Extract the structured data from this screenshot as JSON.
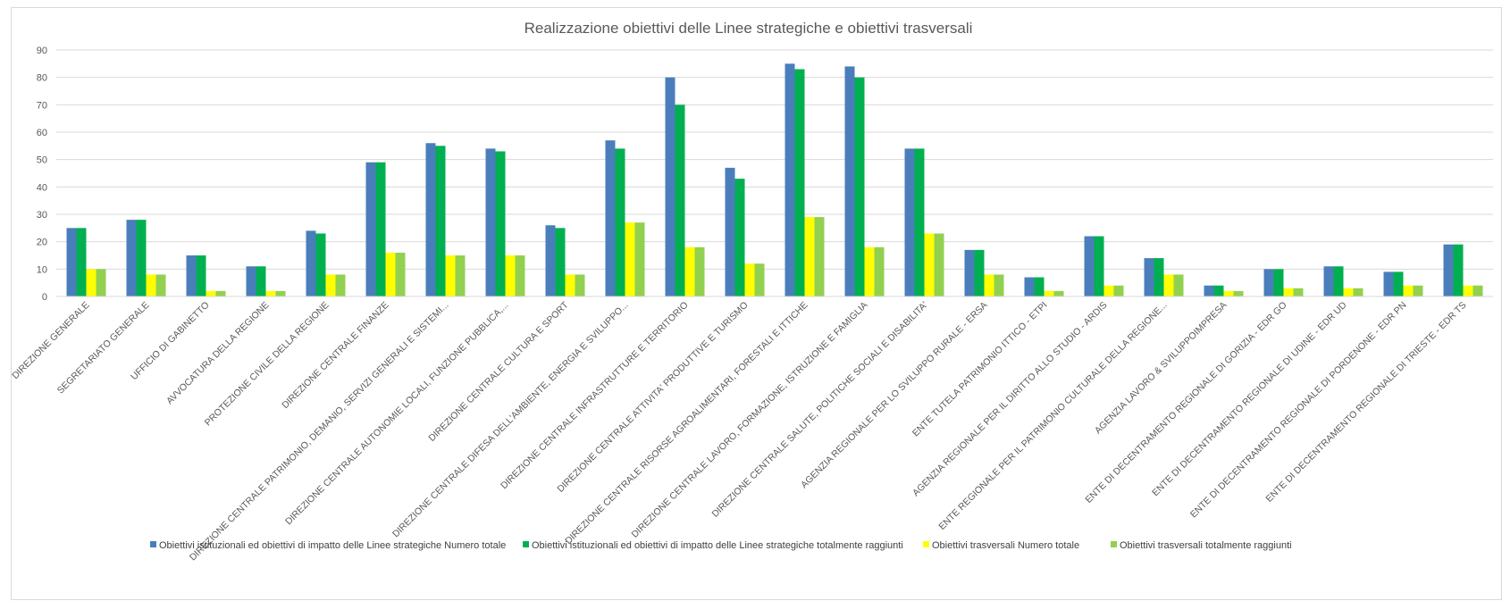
{
  "chart_data": {
    "type": "bar",
    "title": "Realizzazione obiettivi delle Linee strategiche e obiettivi trasversali",
    "xlabel": "",
    "ylabel": "",
    "ylim": [
      0,
      90
    ],
    "yticks": [
      0,
      10,
      20,
      30,
      40,
      50,
      60,
      70,
      80,
      90
    ],
    "grid": true,
    "legend_position": "bottom",
    "categories": [
      "DIREZIONE GENERALE",
      "SEGRETARIATO GENERALE",
      "UFFICIO DI GABINETTO",
      "AVVOCATURA DELLA REGIONE",
      "PROTEZIONE CIVILE DELLA REGIONE",
      "DIREZIONE CENTRALE FINANZE",
      "DIREZIONE CENTRALE PATRIMONIO, DEMANIO, SERVIZI GENERALI E SISTEMI...",
      "DIREZIONE CENTRALE AUTONOMIE LOCALI, FUNZIONE PUBBLICA,...",
      "DIREZIONE CENTRALE CULTURA E SPORT",
      "DIREZIONE CENTRALE DIFESA DELL'AMBIENTE, ENERGIA E SVILUPPO...",
      "DIREZIONE CENTRALE INFRASTRUTTURE E TERRITORIO",
      "DIREZIONE CENTRALE ATTIVITA' PRODUTTIVE E TURISMO",
      "DIREZIONE CENTRALE RISORSE AGROALIMENTARI, FORESTALI E ITTICHE",
      "DIREZIONE CENTRALE LAVORO, FORMAZIONE, ISTRUZIONE E FAMIGLIA",
      "DIREZIONE CENTRALE SALUTE, POLITICHE SOCIALI E DISABILITA'",
      "AGENZIA REGIONALE PER LO SVILUPPO RURALE - ERSA",
      "ENTE TUTELA PATRIMONIO ITTICO - ETPI",
      "AGENZIA REGIONALE PER IL DIRITTO ALLO STUDIO - ARDIS",
      "ENTE REGIONALE PER IL PATRIMONIO CULTURALE DELLA REGIONE...",
      "AGENZIA LAVORO & SVILUPPOIMPRESA",
      "ENTE DI DECENTRAMENTO REGIONALE DI GORIZIA - EDR GO",
      "ENTE DI DECENTRAMENTO REGIONALE DI UDINE - EDR UD",
      "ENTE DI DECENTRAMENTO REGIONALE DI PORDENONE - EDR PN",
      "ENTE DI DECENTRAMENTO REGIONALE DI TRIESTE - EDR TS"
    ],
    "series": [
      {
        "name": "Obiettivi istituzionali ed obiettivi di impatto delle Linee strategiche Numero totale",
        "color": "#4a7ebb",
        "values": [
          25,
          28,
          15,
          11,
          24,
          49,
          56,
          54,
          26,
          57,
          80,
          47,
          85,
          84,
          54,
          17,
          7,
          22,
          14,
          4,
          10,
          11,
          9,
          19
        ]
      },
      {
        "name": "Obiettivi istituzionali ed obiettivi di impatto delle Linee strategiche  totalmente raggiunti",
        "color": "#00b050",
        "values": [
          25,
          28,
          15,
          11,
          23,
          49,
          55,
          53,
          25,
          54,
          70,
          43,
          83,
          80,
          54,
          17,
          7,
          22,
          14,
          4,
          10,
          11,
          9,
          19
        ]
      },
      {
        "name": "Obiettivi trasversali Numero totale",
        "color": "#ffff00",
        "values": [
          10,
          8,
          2,
          2,
          8,
          16,
          15,
          15,
          8,
          27,
          18,
          12,
          29,
          18,
          23,
          8,
          2,
          4,
          8,
          2,
          3,
          3,
          4,
          4
        ]
      },
      {
        "name": "Obiettivi trasversali  totalmente raggiunti",
        "color": "#92d050",
        "values": [
          10,
          8,
          2,
          2,
          8,
          16,
          15,
          15,
          8,
          27,
          18,
          12,
          29,
          18,
          23,
          8,
          2,
          4,
          8,
          2,
          3,
          3,
          4,
          4
        ]
      }
    ]
  }
}
